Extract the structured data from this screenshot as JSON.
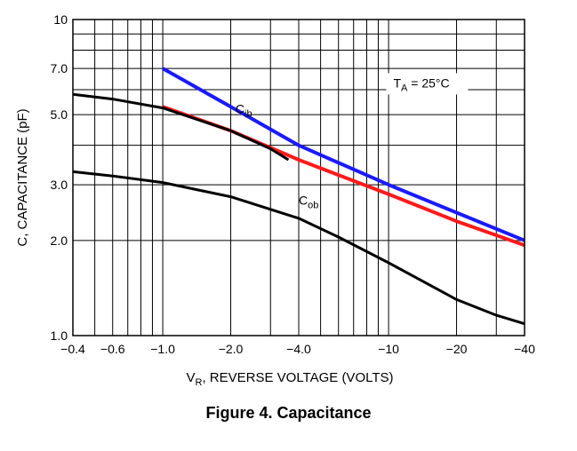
{
  "caption": "Figure 4. Capacitance",
  "chart_data": {
    "type": "line",
    "scale": {
      "x": "log",
      "y": "log"
    },
    "xlabel": {
      "main": "V",
      "sub": "R",
      "rest": ", REVERSE VOLTAGE (VOLTS)"
    },
    "ylabel": "C, CAPACITANCE (pF)",
    "xlim": [
      0.4,
      40
    ],
    "ylim": [
      1.0,
      10
    ],
    "x_ticks": [
      {
        "value": 0.4,
        "label": "−0.4"
      },
      {
        "value": 0.6,
        "label": "−0.6"
      },
      {
        "value": 1.0,
        "label": "−1.0"
      },
      {
        "value": 2.0,
        "label": "−2.0"
      },
      {
        "value": 4.0,
        "label": "−4.0"
      },
      {
        "value": 10,
        "label": "−10"
      },
      {
        "value": 20,
        "label": "−20"
      },
      {
        "value": 40,
        "label": "−40"
      }
    ],
    "y_ticks": [
      {
        "value": 1.0,
        "label": "1.0"
      },
      {
        "value": 2.0,
        "label": "2.0"
      },
      {
        "value": 3.0,
        "label": "3.0"
      },
      {
        "value": 5.0,
        "label": "5.0"
      },
      {
        "value": 7.0,
        "label": "7.0"
      },
      {
        "value": 10,
        "label": "10"
      }
    ],
    "x_grid": [
      0.4,
      0.5,
      0.6,
      0.7,
      0.8,
      0.9,
      1,
      2,
      3,
      4,
      5,
      6,
      7,
      8,
      9,
      10,
      20,
      30,
      40
    ],
    "y_grid": [
      1,
      2,
      3,
      4,
      5,
      6,
      7,
      8,
      9,
      10
    ],
    "grid": true,
    "series": [
      {
        "name": "C_ib",
        "color": "#1a1aff",
        "width": 4,
        "x": [
          1.0,
          2.0,
          4.0,
          10,
          20,
          40
        ],
        "y": [
          7.0,
          5.3,
          4.0,
          3.0,
          2.45,
          2.0
        ]
      },
      {
        "name": "C_ib",
        "color": "#ff1a1a",
        "width": 4,
        "x": [
          1.0,
          2.0,
          4.0,
          10,
          20,
          40
        ],
        "y": [
          5.3,
          4.45,
          3.6,
          2.8,
          2.3,
          1.93
        ]
      },
      {
        "name": "C_ib",
        "color": "#000000",
        "width": 3,
        "x": [
          0.4,
          0.6,
          1.0,
          2.0,
          3.0,
          3.6
        ],
        "y": [
          5.8,
          5.6,
          5.25,
          4.45,
          3.9,
          3.6
        ]
      },
      {
        "name": "C_ob",
        "color": "#000000",
        "width": 3,
        "x": [
          0.4,
          0.6,
          1.0,
          2.0,
          4.0,
          6.0,
          10,
          20,
          30,
          40
        ],
        "y": [
          3.3,
          3.2,
          3.05,
          2.75,
          2.35,
          2.05,
          1.7,
          1.3,
          1.16,
          1.09
        ]
      }
    ],
    "annotations": [
      {
        "id": "ta",
        "main": "T",
        "sub": "A",
        "rest": " = 25°C",
        "x": 10.5,
        "y": 6.1
      },
      {
        "id": "cib",
        "main": "C",
        "sub": "ib",
        "rest": "",
        "x": 2.1,
        "y": 5.05
      },
      {
        "id": "cob",
        "main": "C",
        "sub": "ob",
        "rest": "",
        "x": 4.0,
        "y": 2.6
      }
    ]
  }
}
